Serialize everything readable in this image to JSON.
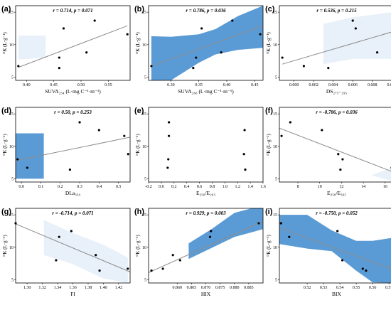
{
  "figure": {
    "panels": [
      {
        "label": "(a)",
        "stat": "r = 0.714, p = 0.071",
        "xlabel": "SUVA₂₅₄ (L·mg C⁻¹·m⁻¹)",
        "ylabel": "ᴰK (L·g⁻¹)"
      },
      {
        "label": "(b)",
        "stat": "r = 0.786, p = 0.036",
        "xlabel": "SUVA₂₆₀ (L·mg C⁻¹·m⁻¹)",
        "ylabel": "ᴰK (L·g⁻¹)"
      },
      {
        "label": "(c)",
        "stat": "r = 0.536, p = 0.215",
        "xlabel": "DS₂₇₅₋₂₉₅",
        "ylabel": "ᴰK (L·g⁻¹)"
      },
      {
        "label": "(d)",
        "stat": "r = 0.50, p = 0.253",
        "xlabel": "DLa₃₅₀",
        "ylabel": "ᴰK (L·g⁻¹)"
      },
      {
        "label": "(e)",
        "stat": "",
        "xlabel": "E₂₅₀/E₂₀₃",
        "ylabel": "ᴰK (L·g⁻¹)"
      },
      {
        "label": "(f)",
        "stat": "r = -0.786, p = 0.036",
        "xlabel": "E₂₅₀/E₃₆₅",
        "ylabel": "ᴰK (L·g⁻¹)"
      },
      {
        "label": "(g)",
        "stat": "r = -0.714, p = 0.071",
        "xlabel": "FI",
        "ylabel": "ᴰK (L·g⁻¹)"
      },
      {
        "label": "(h)",
        "stat": "r = 0.929, p = 0.003",
        "xlabel": "HIX",
        "ylabel": "ᴰK (L·g⁻¹)"
      },
      {
        "label": "(i)",
        "stat": "r = -0.750, p = 0.052",
        "xlabel": "BIX",
        "ylabel": "ᴰK (L·g⁻¹)"
      }
    ]
  },
  "chart_data": [
    {
      "type": "scatter",
      "title": "(a)",
      "xlabel": "SUVA₂₅₄ (L·mg C⁻¹·m⁻¹)",
      "ylabel": "ᴰK (L·g⁻¹)",
      "xlim": [
        0.38,
        0.59
      ],
      "ylim": [
        4.5,
        16
      ],
      "xticks": [
        "0.40",
        "0.45",
        "0.50",
        "0.55"
      ],
      "yticks": [
        "5",
        "10",
        "15"
      ],
      "x": [
        0.385,
        0.46,
        0.46,
        0.468,
        0.51,
        0.525,
        0.585
      ],
      "y": [
        6.7,
        8.0,
        6.4,
        12.5,
        8.8,
        13.7,
        11.6
      ],
      "fit": [
        [
          0.385,
          6.5
        ],
        [
          0.585,
          12.9
        ]
      ],
      "band_color": "#e8f0f9",
      "band": [
        [
          0.385,
          7.7,
          11.4
        ],
        [
          0.435,
          8.0,
          11.4
        ]
      ]
    },
    {
      "type": "scatter",
      "title": "(b)",
      "xlabel": "SUVA₂₆₀ (L·mg C⁻¹·m⁻¹)",
      "ylabel": "ᴰK (L·g⁻¹)",
      "xlim": [
        0.26,
        0.465
      ],
      "ylim": [
        4.5,
        16
      ],
      "xticks": [
        "0.30",
        "0.35",
        "0.40",
        "0.45"
      ],
      "yticks": [
        "5",
        "10",
        "15"
      ],
      "x": [
        0.265,
        0.34,
        0.345,
        0.355,
        0.39,
        0.41,
        0.46
      ],
      "y": [
        6.7,
        6.4,
        8.0,
        12.5,
        8.8,
        13.7,
        11.6
      ],
      "fit": [
        [
          0.265,
          6.7
        ],
        [
          0.465,
          12.9
        ]
      ],
      "band_color": "#5b9bd5",
      "band": [
        [
          0.265,
          1.5,
          11.3
        ],
        [
          0.3,
          4.0,
          11.2
        ],
        [
          0.35,
          7.2,
          11.6
        ],
        [
          0.38,
          8.5,
          12.4
        ],
        [
          0.42,
          9.2,
          14.4
        ],
        [
          0.465,
          9.5,
          16.5
        ]
      ]
    },
    {
      "type": "scatter",
      "title": "(c)",
      "xlabel": "DS₂₇₅₋₂₉₅",
      "ylabel": "ᴰK (L·g⁻¹)",
      "xlim": [
        -0.0015,
        0.0102
      ],
      "ylim": [
        4.5,
        16
      ],
      "xticks": [
        "0.000",
        "0.002",
        "0.004",
        "0.006",
        "0.008",
        "0.010"
      ],
      "yticks": [
        "5",
        "10",
        "15"
      ],
      "x": [
        -0.0012,
        0.001,
        0.0035,
        0.006,
        0.0063,
        0.0085,
        0.0101
      ],
      "y": [
        8.0,
        6.7,
        6.4,
        13.7,
        12.5,
        8.8,
        11.6
      ],
      "fit": [
        [
          -0.0012,
          7.0
        ],
        [
          0.0101,
          12.0
        ]
      ],
      "band_color": "#e8f0f9",
      "band": [
        [
          0.003,
          7.0,
          13.2
        ],
        [
          0.006,
          7.8,
          14.2
        ],
        [
          0.0101,
          7.8,
          15.0
        ]
      ]
    },
    {
      "type": "scatter",
      "title": "(d)",
      "xlabel": "DLa₃₅₀",
      "ylabel": "ᴰK (L·g⁻¹)",
      "xlim": [
        -0.03,
        0.56
      ],
      "ylim": [
        4.5,
        16
      ],
      "xticks": [
        "0.0",
        "0.1",
        "0.2",
        "0.3",
        "0.4",
        "0.5"
      ],
      "yticks": [
        "5",
        "10",
        "15"
      ],
      "x": [
        -0.02,
        0.03,
        0.25,
        0.3,
        0.4,
        0.53,
        0.55
      ],
      "y": [
        8.0,
        6.7,
        6.4,
        13.7,
        12.5,
        11.6,
        8.8
      ],
      "fit": [
        [
          -0.03,
          7.8
        ],
        [
          0.56,
          11.4
        ]
      ],
      "band_color": "#5b9bd5",
      "band": [
        [
          -0.03,
          5.0,
          12.0
        ],
        [
          0.115,
          5.0,
          12.0
        ]
      ]
    },
    {
      "type": "scatter",
      "title": "(e)",
      "xlabel": "E₂₅₀/E₂₀₃",
      "ylabel": "ᴰK (L·g⁻¹)",
      "xlim": [
        -0.2,
        1.6
      ],
      "ylim": [
        4.5,
        16
      ],
      "xticks": [
        "-0.2",
        "0.0",
        "0.2",
        "0.4",
        "0.6",
        "0.8",
        "1.0",
        "1.2",
        "1.4",
        "1.6"
      ],
      "yticks": [
        "5",
        "10",
        "15"
      ],
      "x": [
        0.1,
        0.11,
        0.12,
        0.12,
        1.3,
        1.31,
        1.32
      ],
      "y": [
        6.7,
        8.0,
        11.6,
        13.7,
        8.8,
        12.5,
        6.4
      ]
    },
    {
      "type": "scatter",
      "title": "(f)",
      "xlabel": "E₂₅₀/E₃₆₅",
      "ylabel": "ᴰK (L·g⁻¹)",
      "xlim": [
        6.3,
        16.8
      ],
      "ylim": [
        4.5,
        16
      ],
      "xticks": [
        "8",
        "10",
        "12",
        "14",
        "16"
      ],
      "yticks": [
        "5",
        "10",
        "15"
      ],
      "x": [
        6.5,
        7.3,
        10.2,
        11.7,
        11.9,
        12.1,
        16.6
      ],
      "y": [
        11.6,
        13.7,
        12.5,
        8.8,
        6.4,
        8.0,
        6.7
      ],
      "fit": [
        [
          6.3,
          12.8
        ],
        [
          16.8,
          6.0
        ]
      ],
      "band_color": "#e8f0f9",
      "band": [
        [
          14.8,
          5.5,
          5.6
        ],
        [
          16.8,
          4.6,
          6.8
        ]
      ]
    },
    {
      "type": "scatter",
      "title": "(g)",
      "xlabel": "FI",
      "ylabel": "ᴰK (L·g⁻¹)",
      "xlim": [
        1.285,
        1.435
      ],
      "ylim": [
        4.5,
        16
      ],
      "xticks": [
        "1.30",
        "1.32",
        "1.34",
        "1.36",
        "1.38",
        "1.40",
        "1.42"
      ],
      "yticks": [
        "5",
        "10",
        "15"
      ],
      "x": [
        1.285,
        1.338,
        1.342,
        1.358,
        1.39,
        1.395,
        1.432
      ],
      "y": [
        13.7,
        8.0,
        11.6,
        12.5,
        8.8,
        6.4,
        6.7
      ],
      "fit": [
        [
          1.285,
          13.6
        ],
        [
          1.435,
          6.2
        ]
      ],
      "band_color": "#e8f0f9",
      "band": [
        [
          1.322,
          8.8,
          14.2
        ],
        [
          1.36,
          7.4,
          12.2
        ],
        [
          1.4,
          5.2,
          10.4
        ],
        [
          1.432,
          4.5,
          8.4
        ]
      ]
    },
    {
      "type": "scatter",
      "title": "(h)",
      "xlabel": "HIX",
      "ylabel": "ᴰK (L·g⁻¹)",
      "xlim": [
        0.85,
        0.89
      ],
      "ylim": [
        4.5,
        16
      ],
      "xticks": [
        "0.860",
        "0.865",
        "0.870",
        "0.875",
        "0.880",
        "0.885"
      ],
      "yticks": [
        "5",
        "10",
        "15"
      ],
      "x": [
        0.851,
        0.855,
        0.8585,
        0.861,
        0.8715,
        0.8718,
        0.8885
      ],
      "y": [
        6.4,
        6.7,
        8.8,
        8.0,
        11.6,
        12.5,
        13.7
      ],
      "fit": [
        [
          0.85,
          6.1
        ],
        [
          0.89,
          14.0
        ]
      ],
      "band_color": "#5b9bd5",
      "band": [
        [
          0.864,
          8.2,
          10.6
        ],
        [
          0.872,
          9.9,
          12.8
        ],
        [
          0.88,
          11.6,
          15.3
        ],
        [
          0.886,
          12.3,
          16.5
        ],
        [
          0.89,
          12.8,
          16.5
        ]
      ]
    },
    {
      "type": "scatter",
      "title": "(i)",
      "xlabel": "BIX",
      "ylabel": "ᴰK (L·g⁻¹)",
      "xlim": [
        0.503,
        0.573
      ],
      "ylim": [
        4.5,
        16
      ],
      "xticks": [
        "0.52",
        "0.53",
        "0.54",
        "0.55",
        "0.56",
        "0.57"
      ],
      "yticks": [
        "5",
        "10",
        "15"
      ],
      "x": [
        0.504,
        0.509,
        0.5385,
        0.5415,
        0.554,
        0.556,
        0.572
      ],
      "y": [
        13.7,
        11.6,
        12.5,
        8.0,
        6.7,
        6.4,
        8.8
      ],
      "fit": [
        [
          0.503,
          13.0
        ],
        [
          0.573,
          6.5
        ]
      ],
      "band_color": "#5b9bd5",
      "band": [
        [
          0.503,
          10.5,
          15.0
        ],
        [
          0.52,
          9.8,
          15.0
        ],
        [
          0.535,
          9.4,
          12.6
        ],
        [
          0.55,
          6.4,
          11.0
        ],
        [
          0.56,
          4.6,
          11.0
        ],
        [
          0.573,
          3.0,
          11.5
        ]
      ]
    }
  ]
}
